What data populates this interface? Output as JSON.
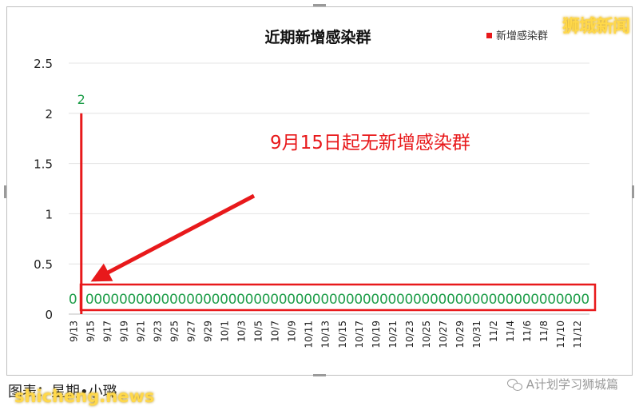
{
  "chart_data": {
    "type": "bar",
    "title": "近期新增感染群",
    "legend": {
      "label": "新增感染群",
      "position": "top-right",
      "color": "#e8191b"
    },
    "ylim": [
      0,
      2.5
    ],
    "yticks": [
      "0",
      "0.5",
      "1",
      "1.5",
      "2",
      "2.5"
    ],
    "ytick_values": [
      0,
      0.5,
      1,
      1.5,
      2,
      2.5
    ],
    "grid": true,
    "categories": [
      "9/13",
      "9/14",
      "9/15",
      "9/16",
      "9/17",
      "9/18",
      "9/19",
      "9/20",
      "9/21",
      "9/22",
      "9/23",
      "9/24",
      "9/25",
      "9/26",
      "9/27",
      "9/28",
      "9/29",
      "9/30",
      "10/1",
      "10/2",
      "10/3",
      "10/4",
      "10/5",
      "10/6",
      "10/7",
      "10/8",
      "10/9",
      "10/10",
      "10/11",
      "10/12",
      "10/13",
      "10/14",
      "10/15",
      "10/16",
      "10/17",
      "10/18",
      "10/19",
      "10/20",
      "10/21",
      "10/22",
      "10/23",
      "10/24",
      "10/25",
      "10/26",
      "10/27",
      "10/28",
      "10/29",
      "10/30",
      "10/31",
      "11/1",
      "11/2",
      "11/3",
      "11/4",
      "11/5",
      "11/6",
      "11/7",
      "11/8",
      "11/9",
      "11/10",
      "11/11",
      "11/12",
      "11/13"
    ],
    "xtick_labels": [
      "9/13",
      "",
      "9/15",
      "",
      "9/17",
      "",
      "9/19",
      "",
      "9/21",
      "",
      "9/23",
      "",
      "9/25",
      "",
      "9/27",
      "",
      "9/29",
      "",
      "10/1",
      "",
      "10/3",
      "",
      "10/5",
      "",
      "10/7",
      "",
      "10/9",
      "",
      "10/11",
      "",
      "10/13",
      "",
      "10/15",
      "",
      "10/17",
      "",
      "10/19",
      "",
      "10/21",
      "",
      "10/23",
      "",
      "10/25",
      "",
      "10/27",
      "",
      "10/29",
      "",
      "10/31",
      "",
      "11/2",
      "",
      "11/4",
      "",
      "11/6",
      "",
      "11/8",
      "",
      "11/10",
      "",
      "11/12",
      ""
    ],
    "values": [
      0,
      2,
      0,
      0,
      0,
      0,
      0,
      0,
      0,
      0,
      0,
      0,
      0,
      0,
      0,
      0,
      0,
      0,
      0,
      0,
      0,
      0,
      0,
      0,
      0,
      0,
      0,
      0,
      0,
      0,
      0,
      0,
      0,
      0,
      0,
      0,
      0,
      0,
      0,
      0,
      0,
      0,
      0,
      0,
      0,
      0,
      0,
      0,
      0,
      0,
      0,
      0,
      0,
      0,
      0,
      0,
      0,
      0,
      0,
      0,
      0,
      0
    ],
    "bar_color": "#e8191b",
    "label_color": "#1f9e4a",
    "annotation": {
      "text": "9月15日起无新增感染群",
      "color": "#e8191b"
    }
  },
  "brand": "狮城新闻",
  "caption": "图表：星期•小璐",
  "site": "shicheng.news",
  "wechat": {
    "icon": "wechat-icon",
    "label": "A计划学习狮城篇"
  }
}
